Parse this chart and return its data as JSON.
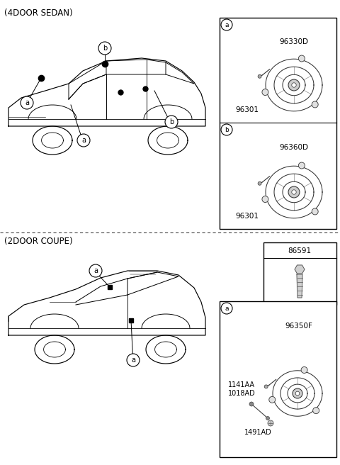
{
  "title_sedan": "(4DOOR SEDAN)",
  "title_coupe": "(2DOOR COUPE)",
  "bg_color": "#ffffff",
  "part_96330D": "96330D",
  "part_96301_a": "96301",
  "part_96360D": "96360D",
  "part_96301_b": "96301",
  "part_86591": "86591",
  "part_96350F": "96350F",
  "part_1141AA": "1141AA",
  "part_1018AD": "1018AD",
  "part_1491AD": "1491AD"
}
